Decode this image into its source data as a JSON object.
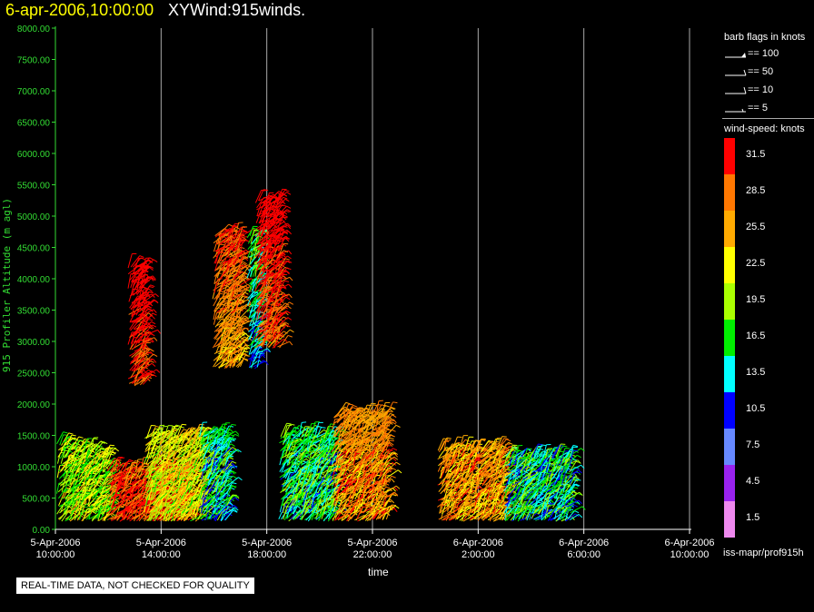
{
  "header": {
    "date": "6-apr-2006,10:00:00",
    "title": "XYWind:915winds."
  },
  "footer": {
    "quality_note": "REAL-TIME DATA, NOT CHECKED FOR QUALITY",
    "source_path": "iss-mapr/prof915h"
  },
  "legend": {
    "barb_title": "barb flags in knots",
    "barbs": [
      {
        "label": "== 100",
        "kind": "triangle"
      },
      {
        "label": "== 50",
        "kind": "flag"
      },
      {
        "label": "== 10",
        "kind": "full"
      },
      {
        "label": "== 5",
        "kind": "half"
      }
    ],
    "speed_title": "wind-speed: knots",
    "speed_bins": [
      {
        "label": "31.5",
        "color": "#ff0000"
      },
      {
        "label": "28.5",
        "color": "#ff7700"
      },
      {
        "label": "25.5",
        "color": "#ffaa00"
      },
      {
        "label": "22.5",
        "color": "#ffff00"
      },
      {
        "label": "19.5",
        "color": "#aaff00"
      },
      {
        "label": "16.5",
        "color": "#00ee00"
      },
      {
        "label": "13.5",
        "color": "#00ffff"
      },
      {
        "label": "10.5",
        "color": "#0000ff"
      },
      {
        "label": "7.5",
        "color": "#6688ff"
      },
      {
        "label": "4.5",
        "color": "#9922ee"
      },
      {
        "label": "1.5",
        "color": "#ee88ee"
      }
    ]
  },
  "chart_data": {
    "type": "scatter",
    "title": "XYWind:915winds.",
    "xlabel": "time",
    "ylabel": "915 Profiler Altitude (m agl)",
    "ylim": [
      0,
      8000
    ],
    "yticks": [
      "0.00",
      "500.00",
      "1000.00",
      "1500.00",
      "2000.00",
      "2500.00",
      "3000.00",
      "3500.00",
      "4000.00",
      "4500.00",
      "5000.00",
      "5500.00",
      "6000.00",
      "6500.00",
      "7000.00",
      "7500.00",
      "8000.00"
    ],
    "xlim_hours": [
      0,
      24
    ],
    "xticks": [
      {
        "hour": 0,
        "date": "5-Apr-2006",
        "time": "10:00:00"
      },
      {
        "hour": 4,
        "date": "5-Apr-2006",
        "time": "14:00:00"
      },
      {
        "hour": 8,
        "date": "5-Apr-2006",
        "time": "18:00:00"
      },
      {
        "hour": 12,
        "date": "5-Apr-2006",
        "time": "22:00:00"
      },
      {
        "hour": 16,
        "date": "6-Apr-2006",
        "time": "2:00:00"
      },
      {
        "hour": 20,
        "date": "6-Apr-2006",
        "time": "6:00:00"
      },
      {
        "hour": 24,
        "date": "6-Apr-2006",
        "time": "10:00:00"
      }
    ],
    "grid": "vertical",
    "series": [
      {
        "hours": [
          0.1,
          2.0
        ],
        "alt_top": [
          1400,
          1200
        ],
        "speed": 20
      },
      {
        "hours": [
          2.0,
          5.0
        ],
        "alt_top": [
          1000,
          1000
        ],
        "speed": 31
      },
      {
        "hours": [
          2.8,
          3.4
        ],
        "alt_top": [
          4200,
          4200
        ],
        "speed": 30
      },
      {
        "hours": [
          3.4,
          5.5
        ],
        "alt_top": [
          1500,
          1500
        ],
        "speed": 22
      },
      {
        "hours": [
          5.5,
          6.5
        ],
        "alt_top": [
          1500,
          1500
        ],
        "speed": 15
      },
      {
        "hours": [
          6.0,
          7.0
        ],
        "alt_top": [
          4700,
          4700
        ],
        "speed": 25
      },
      {
        "hours": [
          7.3,
          7.6
        ],
        "alt_top": [
          4700,
          4700
        ],
        "speed": 12
      },
      {
        "hours": [
          7.6,
          8.5
        ],
        "alt_top": [
          5300,
          5300
        ],
        "speed": 28
      },
      {
        "hours": [
          8.5,
          10.5
        ],
        "alt_top": [
          1500,
          1500
        ],
        "speed": 16
      },
      {
        "hours": [
          10.5,
          12.5
        ],
        "alt_top": [
          1800,
          1800
        ],
        "speed": 27
      },
      {
        "hours": [
          14.5,
          17.0
        ],
        "alt_top": [
          1300,
          1300
        ],
        "speed": 26
      },
      {
        "hours": [
          17.0,
          19.5
        ],
        "alt_top": [
          1200,
          1200
        ],
        "speed": 15
      }
    ]
  }
}
